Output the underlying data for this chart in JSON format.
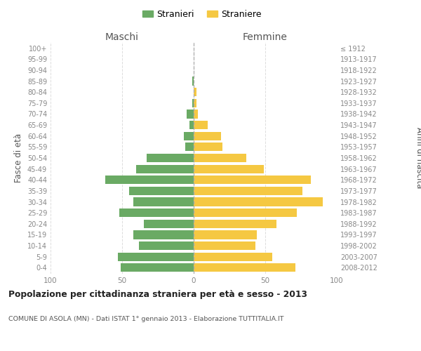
{
  "age_groups": [
    "0-4",
    "5-9",
    "10-14",
    "15-19",
    "20-24",
    "25-29",
    "30-34",
    "35-39",
    "40-44",
    "45-49",
    "50-54",
    "55-59",
    "60-64",
    "65-69",
    "70-74",
    "75-79",
    "80-84",
    "85-89",
    "90-94",
    "95-99",
    "100+"
  ],
  "birth_years": [
    "2008-2012",
    "2003-2007",
    "1998-2002",
    "1993-1997",
    "1988-1992",
    "1983-1987",
    "1978-1982",
    "1973-1977",
    "1968-1972",
    "1963-1967",
    "1958-1962",
    "1953-1957",
    "1948-1952",
    "1943-1947",
    "1938-1942",
    "1933-1937",
    "1928-1932",
    "1923-1927",
    "1918-1922",
    "1913-1917",
    "≤ 1912"
  ],
  "maschi": [
    51,
    53,
    38,
    42,
    35,
    52,
    42,
    45,
    62,
    40,
    33,
    6,
    7,
    3,
    5,
    1,
    0,
    1,
    0,
    0,
    0
  ],
  "femmine": [
    71,
    55,
    43,
    44,
    58,
    72,
    90,
    76,
    82,
    49,
    37,
    20,
    19,
    10,
    3,
    2,
    2,
    0,
    0,
    0,
    0
  ],
  "color_maschi": "#6aaa64",
  "color_femmine": "#f5c842",
  "title": "Popolazione per cittadinanza straniera per età e sesso - 2013",
  "subtitle": "COMUNE DI ASOLA (MN) - Dati ISTAT 1° gennaio 2013 - Elaborazione TUTTITALIA.IT",
  "xlabel_left": "Maschi",
  "xlabel_right": "Femmine",
  "ylabel_left": "Fasce di età",
  "ylabel_right": "Anni di nascita",
  "xlim": 100,
  "legend_stranieri": "Stranieri",
  "legend_straniere": "Straniere",
  "bg_color": "#ffffff",
  "grid_color": "#dddddd"
}
